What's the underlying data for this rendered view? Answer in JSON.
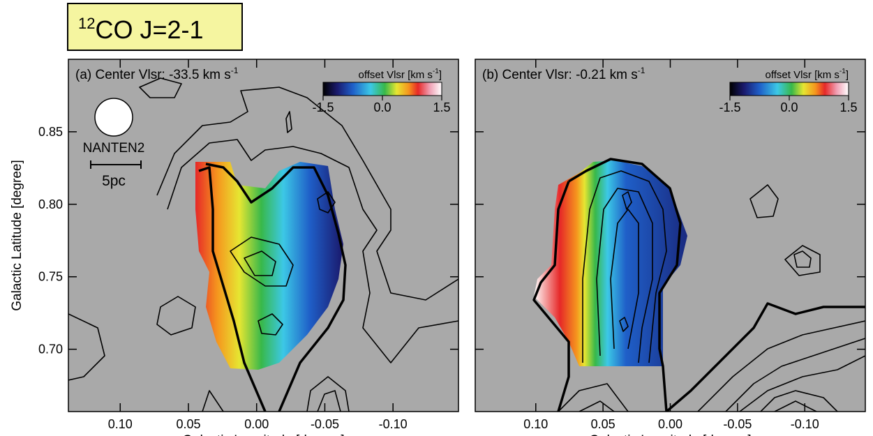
{
  "chart_data": [
    {
      "type": "heatmap",
      "title_sup": "12",
      "title": "CO J=2-1",
      "label": "(a) Center Vlsr: -33.5 km s",
      "label_sup": "-1",
      "xlabel": "Galactic Longitude [degree]",
      "ylabel": "Galactic Latitude [degree]",
      "xlim": [
        0.138,
        -0.148
      ],
      "ylim": [
        0.657,
        0.9
      ],
      "xticks": [
        {
          "value": 0.1,
          "label": "0.10"
        },
        0.05,
        {
          "value": 0,
          "label": "0.00"
        },
        -0.05,
        {
          "value": -0.1,
          "label": "-0.10"
        }
      ],
      "yticks": [
        0.85,
        {
          "value": 0.8,
          "label": "0.80"
        },
        0.75,
        {
          "value": 0.7,
          "label": "0.70"
        }
      ],
      "show_ytick_labels": true,
      "colorbar": {
        "label": "offset Vlsr [km s",
        "label_sup": "-1",
        "label_end": "]",
        "clim": [
          -1.5,
          1.5
        ],
        "ticks": [
          -1.5,
          {
            "value": 0,
            "label": "0.0"
          },
          1.5
        ]
      },
      "beam_label": "NANTEN2",
      "scale_label": "5pc"
    },
    {
      "type": "heatmap",
      "label": "(b) Center Vlsr: -0.21 km s",
      "label_sup": "-1",
      "xlabel": "Galactic Longitude [degree]",
      "xlim": [
        0.145,
        -0.145
      ],
      "ylim": [
        0.657,
        0.9
      ],
      "xticks": [
        {
          "value": 0.1,
          "label": "0.10"
        },
        0.05,
        {
          "value": 0,
          "label": "0.00"
        },
        -0.05,
        {
          "value": -0.1,
          "label": "-0.10"
        }
      ],
      "yticks": [
        0.85,
        {
          "value": 0.8,
          "label": "0.80"
        },
        0.75,
        {
          "value": 0.7,
          "label": "0.70"
        }
      ],
      "show_ytick_labels": false,
      "colorbar": {
        "label": "offset Vlsr [km s",
        "label_sup": "-1",
        "label_end": "]",
        "clim": [
          -1.5,
          1.5
        ],
        "ticks": [
          -1.5,
          {
            "value": 0,
            "label": "0.0"
          },
          1.5
        ]
      }
    }
  ]
}
